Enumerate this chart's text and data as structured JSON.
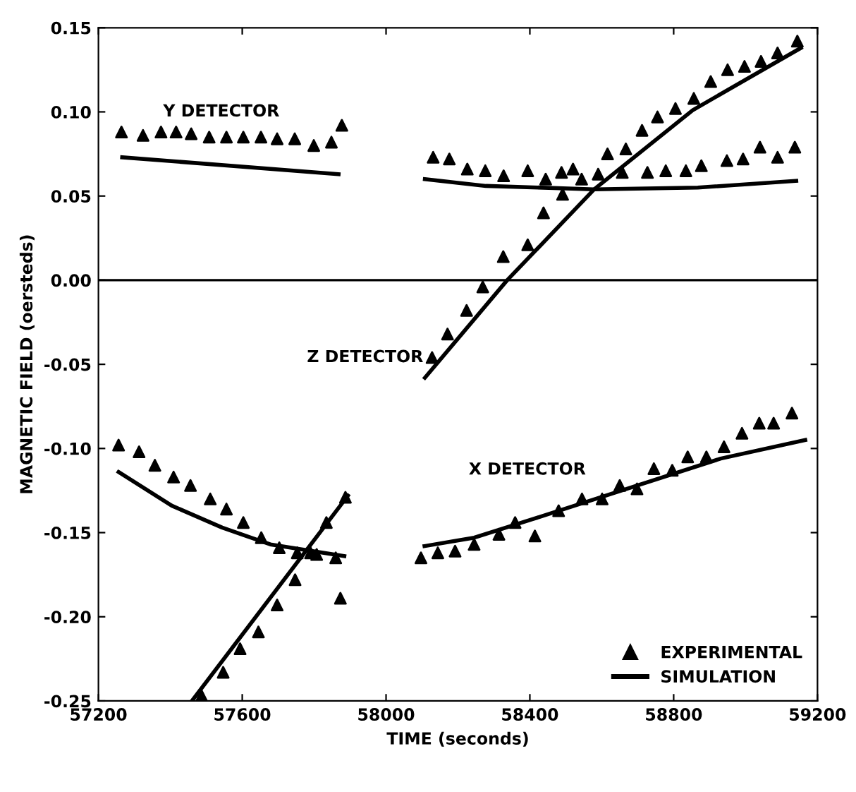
{
  "chart_data": {
    "type": "scatter",
    "xlabel": "TIME (seconds)",
    "ylabel": "MAGNETIC FIELD (oersteds)",
    "xlim": [
      57200,
      59200
    ],
    "xticks": [
      57200,
      57600,
      58000,
      58400,
      58800,
      59200
    ],
    "ylim": [
      -0.25,
      0.15
    ],
    "yticks": [
      {
        "value": 0.15,
        "label": "0.15"
      },
      {
        "value": 0.1,
        "label": "0.10"
      },
      {
        "value": 0.05,
        "label": "0.05"
      },
      {
        "value": 0,
        "label": "0.00"
      },
      {
        "value": -0.05,
        "label": "-0.05"
      },
      {
        "value": -0.1,
        "label": "-0.10"
      },
      {
        "value": -0.15,
        "label": "-0.15"
      },
      {
        "value": -0.2,
        "label": "-0.20"
      },
      {
        "value": -0.25,
        "label": "-0.25"
      }
    ],
    "grid": false,
    "legend": "bottom right",
    "ref_lines": [
      {
        "axis": "y",
        "value": 0,
        "color": "#000000"
      }
    ],
    "annotations": [
      "Y DETECTOR",
      "Z DETECTOR",
      "X DETECTOR"
    ],
    "series": [
      {
        "name": "EXPERIMENTAL",
        "marker": "triangle",
        "color": "#000000",
        "x": [
          57264,
          57324,
          57374,
          57416,
          57458,
          57508,
          57556,
          57603,
          57652,
          57697,
          57746,
          57799,
          57848,
          57877,
          58131,
          58176,
          58226,
          58276,
          58327,
          58394,
          58444,
          58488,
          58520,
          58544,
          58590,
          58657,
          58727,
          58778,
          58834,
          58877,
          58948,
          58993,
          59040,
          59089,
          59137,
          58128,
          58171,
          58224,
          58269,
          58326,
          58394,
          58438,
          58491,
          58616,
          58667,
          58712,
          58755,
          58805,
          58856,
          58903,
          58950,
          58997,
          59043,
          59089,
          59144,
          57487,
          57547,
          57594,
          57645,
          57697,
          57747,
          57790,
          57834,
          57887,
          57873,
          57256,
          57313,
          57357,
          57409,
          57456,
          57511,
          57556,
          57603,
          57653,
          57703,
          57753,
          57807,
          57860,
          58097,
          58144,
          58192,
          58245,
          58314,
          58359,
          58414,
          58480,
          58545,
          58601,
          58650,
          58698,
          58745,
          58796,
          58839,
          58891,
          58940,
          58990,
          59038,
          59078,
          59129
        ],
        "values": [
          0.088,
          0.086,
          0.088,
          0.088,
          0.087,
          0.085,
          0.085,
          0.085,
          0.085,
          0.084,
          0.084,
          0.08,
          0.082,
          0.092,
          0.073,
          0.072,
          0.066,
          0.065,
          0.062,
          0.065,
          0.06,
          0.064,
          0.066,
          0.06,
          0.063,
          0.064,
          0.064,
          0.065,
          0.065,
          0.068,
          0.071,
          0.072,
          0.079,
          0.073,
          0.079,
          -0.046,
          -0.032,
          -0.018,
          -0.004,
          0.014,
          0.021,
          0.04,
          0.051,
          0.075,
          0.078,
          0.089,
          0.097,
          0.102,
          0.108,
          0.118,
          0.125,
          0.127,
          0.13,
          0.135,
          0.142,
          -0.247,
          -0.233,
          -0.219,
          -0.209,
          -0.193,
          -0.178,
          -0.162,
          -0.144,
          -0.129,
          -0.189,
          -0.098,
          -0.102,
          -0.11,
          -0.117,
          -0.122,
          -0.13,
          -0.136,
          -0.144,
          -0.153,
          -0.159,
          -0.162,
          -0.163,
          -0.165,
          -0.165,
          -0.162,
          -0.161,
          -0.157,
          -0.151,
          -0.144,
          -0.152,
          -0.137,
          -0.13,
          -0.13,
          -0.122,
          -0.124,
          -0.112,
          -0.113,
          -0.105,
          -0.105,
          -0.099,
          -0.091,
          -0.085,
          -0.085,
          -0.079
        ]
      },
      {
        "name": "SIMULATION",
        "type": "line",
        "line_style": "solid",
        "color": "#000000",
        "x": [
          57266,
          57868
        ],
        "values": [
          0.073,
          0.063
        ]
      },
      {
        "type": "line",
        "line_style": "solid",
        "color": "#000000",
        "x": [
          58108,
          58278,
          58579,
          58867,
          59141
        ],
        "values": [
          0.06,
          0.056,
          0.054,
          0.055,
          0.059
        ]
      },
      {
        "type": "line",
        "line_style": "solid",
        "color": "#000000",
        "x": [
          57460,
          57894
        ],
        "values": [
          -0.25,
          -0.128
        ]
      },
      {
        "type": "line",
        "line_style": "solid",
        "color": "#000000",
        "x": [
          58108,
          58337,
          58579,
          58853,
          59154
        ],
        "values": [
          -0.058,
          0.0,
          0.054,
          0.101,
          0.138
        ]
      },
      {
        "type": "line",
        "line_style": "solid",
        "color": "#000000",
        "x": [
          57256,
          57404,
          57544,
          57678,
          57884
        ],
        "values": [
          -0.114,
          -0.134,
          -0.147,
          -0.157,
          -0.164
        ]
      },
      {
        "type": "line",
        "line_style": "solid",
        "color": "#000000",
        "x": [
          58107,
          58245,
          58408,
          58669,
          58931,
          59166
        ],
        "values": [
          -0.158,
          -0.153,
          -0.142,
          -0.124,
          -0.106,
          -0.095
        ]
      }
    ]
  }
}
